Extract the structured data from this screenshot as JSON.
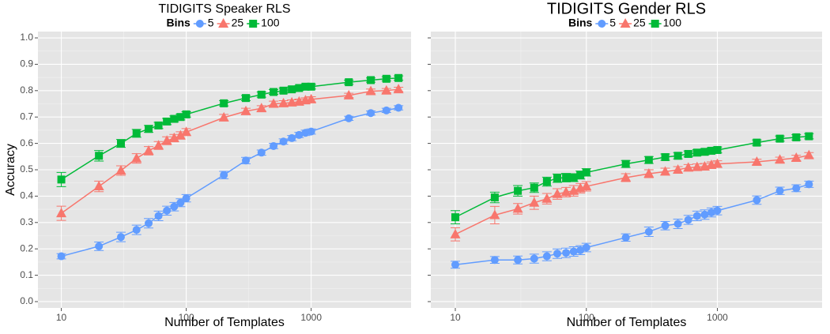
{
  "chart_data": [
    {
      "type": "line",
      "title": "TIDIGITS Speaker RLS",
      "xlabel": "Number of Templates",
      "ylabel": "Accuracy",
      "legend_title": "Bins",
      "log_x": true,
      "grid": true,
      "show_ytick_labels": true,
      "x": [
        10,
        20,
        30,
        40,
        50,
        60,
        70,
        80,
        90,
        100,
        200,
        300,
        400,
        500,
        600,
        700,
        800,
        900,
        1000,
        2000,
        3000,
        4000,
        5000
      ],
      "xlim": [
        6.5,
        6300
      ],
      "ylim": [
        -0.024,
        1.024
      ],
      "xticks": [
        10,
        100,
        1000
      ],
      "yticks": [
        {
          "value": 0,
          "label": "0.0"
        },
        0.1,
        0.2,
        0.3,
        0.4,
        0.5,
        0.6,
        0.7,
        0.8,
        0.9,
        {
          "value": 1,
          "label": "1.0"
        }
      ],
      "series": [
        {
          "name": "5",
          "color": "#619CFF",
          "marker": "circle",
          "values": [
            0.172,
            0.21,
            0.245,
            0.272,
            0.297,
            0.325,
            0.345,
            0.36,
            0.375,
            0.392,
            0.48,
            0.535,
            0.565,
            0.59,
            0.607,
            0.62,
            0.632,
            0.64,
            0.645,
            0.695,
            0.715,
            0.725,
            0.735
          ],
          "errors": [
            0.01,
            0.016,
            0.018,
            0.018,
            0.018,
            0.018,
            0.017,
            0.016,
            0.015,
            0.014,
            0.014,
            0.012,
            0.01,
            0.01,
            0.01,
            0.01,
            0.01,
            0.01,
            0.01,
            0.008,
            0.008,
            0.008,
            0.008
          ]
        },
        {
          "name": "25",
          "color": "#F8766D",
          "marker": "triangle",
          "values": [
            0.335,
            0.437,
            0.497,
            0.543,
            0.572,
            0.592,
            0.61,
            0.62,
            0.63,
            0.643,
            0.698,
            0.722,
            0.733,
            0.75,
            0.752,
            0.755,
            0.758,
            0.763,
            0.767,
            0.782,
            0.798,
            0.8,
            0.805
          ],
          "errors": [
            0.027,
            0.02,
            0.018,
            0.018,
            0.016,
            0.015,
            0.015,
            0.014,
            0.014,
            0.013,
            0.012,
            0.011,
            0.01,
            0.01,
            0.01,
            0.01,
            0.01,
            0.01,
            0.01,
            0.008,
            0.008,
            0.008,
            0.008
          ]
        },
        {
          "name": "100",
          "color": "#00BA38",
          "marker": "square",
          "values": [
            0.463,
            0.553,
            0.6,
            0.638,
            0.655,
            0.668,
            0.683,
            0.693,
            0.7,
            0.71,
            0.752,
            0.772,
            0.785,
            0.795,
            0.8,
            0.805,
            0.81,
            0.815,
            0.815,
            0.832,
            0.84,
            0.845,
            0.848
          ],
          "errors": [
            0.027,
            0.02,
            0.015,
            0.015,
            0.013,
            0.012,
            0.012,
            0.011,
            0.011,
            0.01,
            0.01,
            0.01,
            0.01,
            0.009,
            0.009,
            0.009,
            0.009,
            0.009,
            0.009,
            0.008,
            0.008,
            0.008,
            0.008
          ]
        }
      ]
    },
    {
      "type": "line",
      "title": "TIDIGITS Gender RLS",
      "xlabel": "Number of Templates",
      "legend_title": "Bins",
      "log_x": true,
      "grid": true,
      "show_ytick_labels": false,
      "x": [
        10,
        20,
        30,
        40,
        50,
        60,
        70,
        80,
        90,
        100,
        200,
        300,
        400,
        500,
        600,
        700,
        800,
        900,
        1000,
        2000,
        3000,
        4000,
        5000
      ],
      "xlim": [
        6.5,
        6300
      ],
      "ylim": [
        -0.024,
        1.024
      ],
      "xticks": [
        10,
        100,
        1000
      ],
      "yticks": [
        0,
        0.1,
        0.2,
        0.3,
        0.4,
        0.5,
        0.6,
        0.7,
        0.8,
        0.9,
        1
      ],
      "series": [
        {
          "name": "5",
          "color": "#619CFF",
          "marker": "circle",
          "values": [
            0.14,
            0.158,
            0.158,
            0.163,
            0.172,
            0.182,
            0.185,
            0.19,
            0.195,
            0.205,
            0.243,
            0.265,
            0.288,
            0.295,
            0.31,
            0.325,
            0.33,
            0.338,
            0.345,
            0.385,
            0.42,
            0.43,
            0.445
          ],
          "errors": [
            0.013,
            0.013,
            0.015,
            0.017,
            0.017,
            0.018,
            0.018,
            0.018,
            0.017,
            0.016,
            0.014,
            0.018,
            0.016,
            0.018,
            0.017,
            0.018,
            0.018,
            0.017,
            0.016,
            0.016,
            0.014,
            0.013,
            0.012
          ]
        },
        {
          "name": "25",
          "color": "#F8766D",
          "marker": "triangle",
          "values": [
            0.255,
            0.328,
            0.352,
            0.375,
            0.39,
            0.408,
            0.415,
            0.42,
            0.43,
            0.437,
            0.47,
            0.485,
            0.493,
            0.5,
            0.508,
            0.51,
            0.512,
            0.518,
            0.522,
            0.53,
            0.538,
            0.545,
            0.555
          ],
          "errors": [
            0.025,
            0.033,
            0.02,
            0.025,
            0.02,
            0.02,
            0.018,
            0.02,
            0.018,
            0.018,
            0.015,
            0.015,
            0.013,
            0.012,
            0.012,
            0.012,
            0.012,
            0.012,
            0.012,
            0.01,
            0.01,
            0.01,
            0.01
          ]
        },
        {
          "name": "100",
          "color": "#00BA38",
          "marker": "square",
          "values": [
            0.32,
            0.395,
            0.42,
            0.432,
            0.455,
            0.468,
            0.47,
            0.47,
            0.48,
            0.49,
            0.522,
            0.537,
            0.548,
            0.553,
            0.56,
            0.565,
            0.568,
            0.572,
            0.575,
            0.603,
            0.618,
            0.623,
            0.627
          ],
          "errors": [
            0.025,
            0.02,
            0.02,
            0.018,
            0.017,
            0.016,
            0.016,
            0.015,
            0.015,
            0.014,
            0.013,
            0.013,
            0.012,
            0.012,
            0.011,
            0.011,
            0.011,
            0.011,
            0.011,
            0.01,
            0.01,
            0.01,
            0.01
          ]
        }
      ]
    }
  ]
}
